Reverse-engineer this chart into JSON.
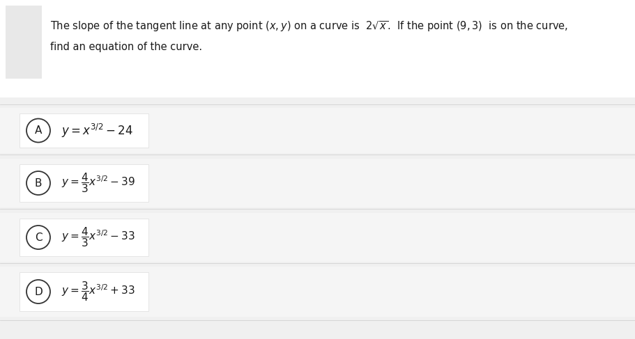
{
  "background_color": "#f0f0f0",
  "question_area_bg": "#ffffff",
  "answer_row_bg": "#f0f0f0",
  "answer_box_bg": "#ffffff",
  "text_color": "#1a1a1a",
  "question_text_line1": "The slope of the tangent line at any point $(x, y)$ on a curve is  $2\\sqrt{x}$.  If the point $(9, 3)$  is on the curve,",
  "question_text_line2": "find an equation of the curve.",
  "gray_square_color": "#e8e8e8",
  "options": [
    {
      "label": "A",
      "formula": "$y=x^{3/2}-24$"
    },
    {
      "label": "B",
      "formula": "$y=\\dfrac{4}{3}x^{3/2}-39$"
    },
    {
      "label": "C",
      "formula": "$y=\\dfrac{4}{3}x^{3/2}-33$"
    },
    {
      "label": "D",
      "formula": "$y=\\dfrac{3}{4}x^{3/2}+33$"
    }
  ],
  "figwidth": 9.11,
  "figheight": 4.87,
  "dpi": 100
}
